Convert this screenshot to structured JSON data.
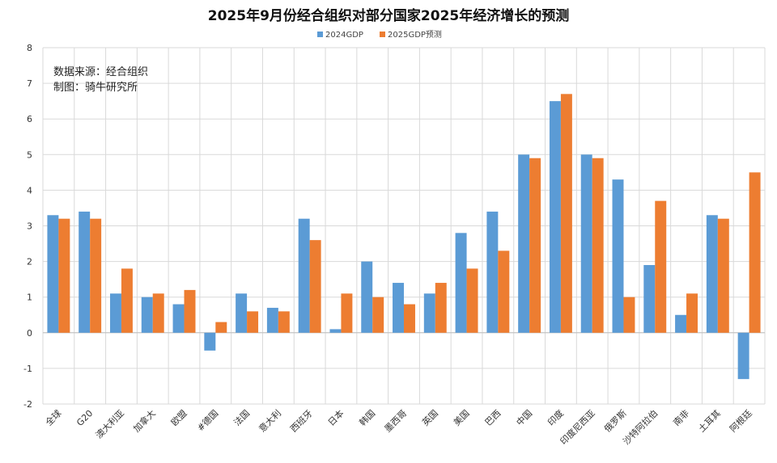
{
  "chart_data": {
    "type": "bar",
    "title": "2025年9月份经合组织对部分国家2025年经济增长的预测",
    "categories": [
      "全球",
      "G20",
      "澳大利亚",
      "加拿大",
      "欧盟",
      "#德国",
      "法国",
      "意大利",
      "西班牙",
      "日本",
      "韩国",
      "墨西哥",
      "英国",
      "美国",
      "巴西",
      "中国",
      "印度",
      "印度尼西亚",
      "俄罗斯",
      "沙特阿拉伯",
      "南非",
      "土耳其",
      "阿根廷"
    ],
    "series": [
      {
        "name": "2024GDP",
        "color": "#5b9bd5",
        "values": [
          3.3,
          3.4,
          1.1,
          1.0,
          0.8,
          -0.5,
          1.1,
          0.7,
          3.2,
          0.1,
          2.0,
          1.4,
          1.1,
          2.8,
          3.4,
          5.0,
          6.5,
          5.0,
          4.3,
          1.9,
          0.5,
          3.3,
          -1.3
        ]
      },
      {
        "name": "2025GDP预测",
        "color": "#ed7d31",
        "values": [
          3.2,
          3.2,
          1.8,
          1.1,
          1.2,
          0.3,
          0.6,
          0.6,
          2.6,
          1.1,
          1.0,
          0.8,
          1.4,
          1.8,
          2.3,
          4.9,
          6.7,
          4.9,
          1.0,
          3.7,
          1.1,
          3.2,
          4.5
        ]
      }
    ],
    "ylim": [
      -2,
      8
    ],
    "yticks": [
      -2,
      -1,
      0,
      1,
      2,
      3,
      4,
      5,
      6,
      7,
      8
    ],
    "legend_position": "top-center",
    "grid": true
  },
  "annotation": {
    "source": "数据来源：经合组织",
    "made_by": "制图：骑牛研究所"
  }
}
